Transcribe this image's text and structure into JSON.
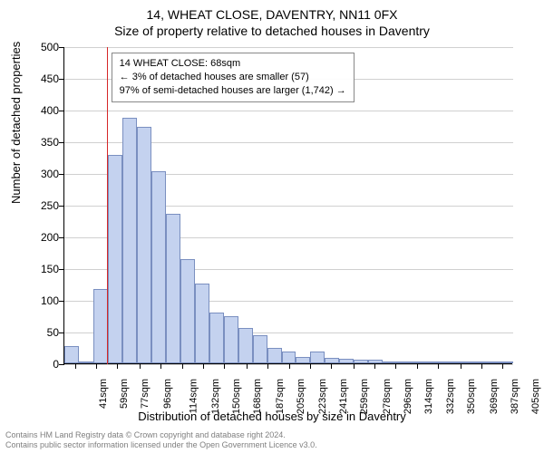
{
  "titles": {
    "main": "14, WHEAT CLOSE, DAVENTRY, NN11 0FX",
    "sub": "Size of property relative to detached houses in Daventry"
  },
  "axes": {
    "ylabel": "Number of detached properties",
    "xlabel": "Distribution of detached houses by size in Daventry"
  },
  "chart": {
    "type": "histogram",
    "background_color": "#ffffff",
    "grid_color": "#d0d0d0",
    "bar_fill": "#c4d2ef",
    "bar_stroke": "#7a8fc0",
    "ref_line_color": "#d62728",
    "ylim": [
      0,
      500
    ],
    "ytick_step": 50,
    "yticks": [
      0,
      50,
      100,
      150,
      200,
      250,
      300,
      350,
      400,
      450,
      500
    ],
    "xtick_labels": [
      "41sqm",
      "59sqm",
      "77sqm",
      "96sqm",
      "114sqm",
      "132sqm",
      "150sqm",
      "168sqm",
      "187sqm",
      "205sqm",
      "223sqm",
      "241sqm",
      "259sqm",
      "278sqm",
      "296sqm",
      "314sqm",
      "332sqm",
      "350sqm",
      "369sqm",
      "387sqm",
      "405sqm"
    ],
    "bar_values": [
      27,
      2,
      117,
      328,
      387,
      373,
      303,
      236,
      165,
      126,
      80,
      74,
      56,
      44,
      24,
      18,
      10,
      19,
      9,
      7,
      6,
      6,
      3,
      2,
      3,
      2,
      2,
      1,
      1,
      1,
      1
    ],
    "num_bars": 31,
    "reference_value_sqm": 68,
    "x_range_sqm": [
      32,
      414
    ],
    "label_fontsize": 13,
    "tick_fontsize": 12
  },
  "info_box": {
    "line1": "14 WHEAT CLOSE: 68sqm",
    "line2": "← 3% of detached houses are smaller (57)",
    "line3": "97% of semi-detached houses are larger (1,742) →"
  },
  "footer": {
    "line1": "Contains HM Land Registry data © Crown copyright and database right 2024.",
    "line2": "Contains public sector information licensed under the Open Government Licence v3.0."
  }
}
